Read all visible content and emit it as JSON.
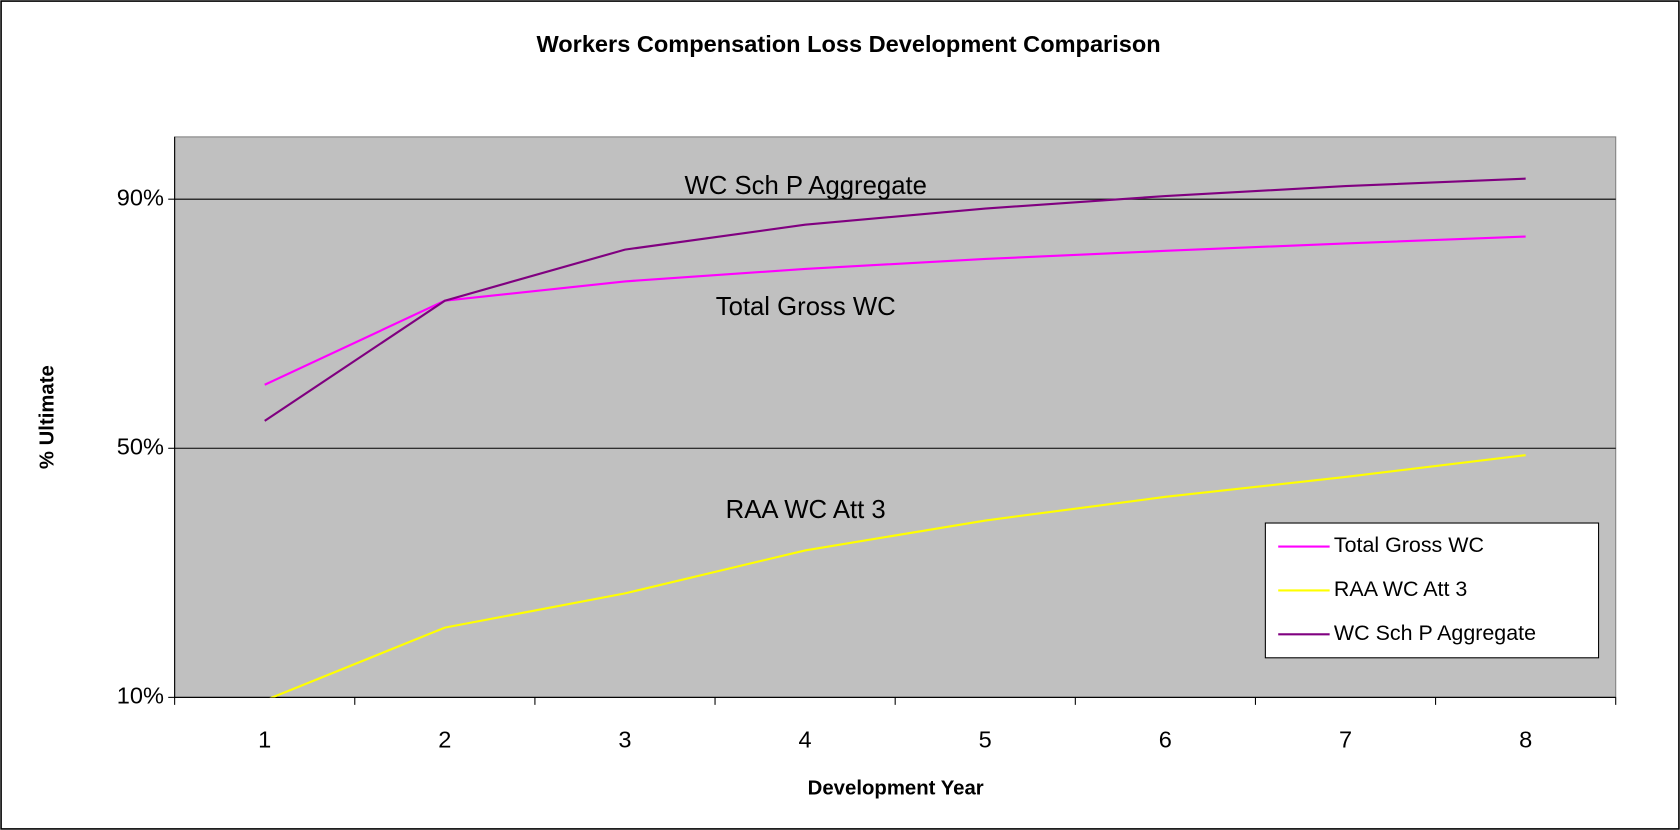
{
  "chart_data": {
    "type": "line",
    "title": "Workers Compensation Loss Development Comparison",
    "x_label": "Development Year",
    "y_label": "% Ultimate",
    "categories": [
      "1",
      "2",
      "3",
      "4",
      "5",
      "6",
      "7",
      "8"
    ],
    "series": [
      {
        "name": "Total Gross WC",
        "color": "#ff00ff",
        "values": [
          60.2,
          73.7,
          76.8,
          78.8,
          80.4,
          81.7,
          82.9,
          84.0
        ]
      },
      {
        "name": "RAA WC Att 3",
        "color": "#ffff00",
        "values": [
          9.5,
          21.2,
          26.7,
          33.6,
          38.4,
          42.2,
          45.4,
          48.9
        ]
      },
      {
        "name": "WC Sch P Aggregate",
        "color": "#800080",
        "values": [
          54.4,
          73.7,
          81.9,
          85.9,
          88.5,
          90.5,
          92.1,
          93.3
        ]
      }
    ],
    "annotations": [
      "WC Sch P Aggregate",
      "Total Gross WC",
      "RAA WC Att 3"
    ],
    "ylim": [
      10,
      100
    ],
    "yticks": [
      {
        "value": 10,
        "label": "10%"
      },
      {
        "value": 50,
        "label": "50%"
      },
      {
        "value": 90,
        "label": "90%"
      }
    ],
    "grid": true,
    "plot_background": "#c0c0c0",
    "legend": "right"
  }
}
